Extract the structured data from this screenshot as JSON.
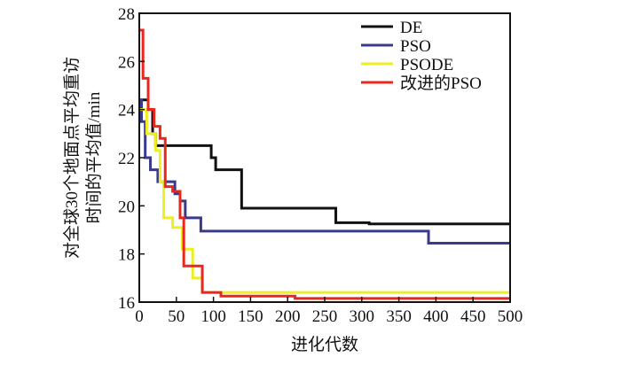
{
  "chart_data": {
    "type": "line",
    "title": "",
    "xlabel": "进化代数",
    "ylabel_lines": [
      "对全球30个地面点平均重访",
      "时间的平均值/min"
    ],
    "xlim": [
      0,
      500
    ],
    "ylim": [
      16,
      28
    ],
    "xticks": [
      "0",
      "50",
      "100",
      "150",
      "200",
      "250",
      "300",
      "350",
      "400",
      "450",
      "500"
    ],
    "yticks": [
      "16",
      "18",
      "20",
      "22",
      "24",
      "26",
      "28"
    ],
    "legend_position": "top-right",
    "series": [
      {
        "name": "DE",
        "color": "#111111",
        "step": true,
        "x": [
          0,
          12,
          18,
          22,
          92,
          97,
          103,
          138,
          265,
          310,
          500
        ],
        "y": [
          24.4,
          24.0,
          23.0,
          22.5,
          22.5,
          22.0,
          21.5,
          19.9,
          19.3,
          19.25,
          19.25
        ]
      },
      {
        "name": "PSO",
        "color": "#3a3a8c",
        "step": true,
        "x": [
          0,
          3,
          8,
          15,
          25,
          48,
          55,
          62,
          83,
          390,
          500
        ],
        "y": [
          24.4,
          23.5,
          22.0,
          21.5,
          21.0,
          20.5,
          20.2,
          19.5,
          18.95,
          18.45,
          18.45
        ]
      },
      {
        "name": "PSODE",
        "color": "#eeee22",
        "step": true,
        "x": [
          0,
          10,
          22,
          28,
          33,
          45,
          58,
          72,
          85,
          500
        ],
        "y": [
          24.0,
          23.0,
          22.3,
          21.0,
          19.5,
          19.1,
          18.2,
          17.0,
          16.4,
          16.4
        ]
      },
      {
        "name": "改进的PSO",
        "color": "#e8281e",
        "step": true,
        "x": [
          0,
          5,
          12,
          20,
          28,
          35,
          45,
          55,
          60,
          85,
          110,
          210,
          500
        ],
        "y": [
          27.3,
          25.3,
          24.0,
          23.3,
          22.8,
          20.8,
          20.6,
          19.5,
          17.5,
          16.4,
          16.25,
          16.15,
          16.15
        ]
      }
    ]
  }
}
